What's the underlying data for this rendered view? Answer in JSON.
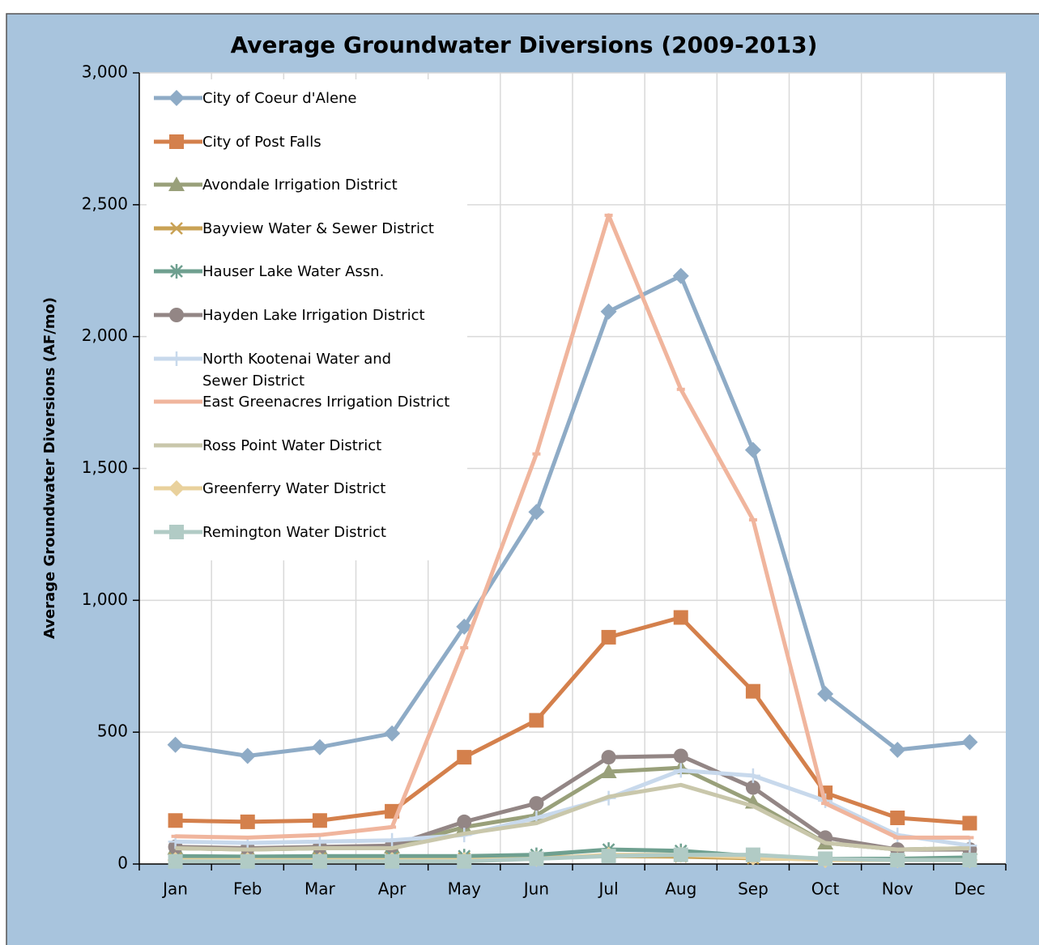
{
  "chart_data": {
    "type": "line",
    "title": "Average Groundwater Diversions (2009-2013)",
    "y_label": "Average Groundwater Diversions (AF/mo)",
    "categories": [
      "Jan",
      "Feb",
      "Mar",
      "Apr",
      "May",
      "Jun",
      "Jul",
      "Aug",
      "Sep",
      "Oct",
      "Nov",
      "Dec"
    ],
    "ylim": [
      0,
      3000
    ],
    "yticks": [
      0,
      500,
      {
        "value": 1000,
        "label": "1,000"
      },
      {
        "value": 1500,
        "label": "1,500"
      },
      {
        "value": 2000,
        "label": "2,000"
      },
      {
        "value": 2500,
        "label": "2,500"
      },
      {
        "value": 3000,
        "label": "3,000"
      }
    ],
    "grid": true,
    "legend": "upper-left",
    "series": [
      {
        "name": "City of Coeur d'Alene",
        "color": "#8eabc6",
        "marker": "diamond",
        "values": [
          452,
          410,
          443,
          495,
          900,
          1335,
          2095,
          2230,
          1570,
          645,
          433,
          462
        ]
      },
      {
        "name": "City of Post Falls",
        "color": "#d4804c",
        "marker": "square",
        "values": [
          165,
          160,
          165,
          200,
          405,
          545,
          860,
          935,
          655,
          270,
          175,
          155
        ]
      },
      {
        "name": "Avondale Irrigation District",
        "color": "#99a07a",
        "marker": "triangle",
        "values": [
          60,
          55,
          60,
          65,
          140,
          185,
          350,
          365,
          235,
          80,
          55,
          60
        ]
      },
      {
        "name": "Bayview Water & Sewer District",
        "color": "#c9a255",
        "marker": "x",
        "values": [
          20,
          18,
          20,
          20,
          22,
          25,
          30,
          28,
          22,
          18,
          18,
          20
        ]
      },
      {
        "name": "Hauser Lake Water Assn.",
        "color": "#6fa090",
        "marker": "star",
        "values": [
          30,
          28,
          30,
          30,
          30,
          35,
          55,
          50,
          30,
          20,
          20,
          25
        ]
      },
      {
        "name": "Hayden Lake Irrigation District",
        "color": "#938685",
        "marker": "circle",
        "values": [
          65,
          60,
          65,
          70,
          160,
          230,
          405,
          410,
          290,
          100,
          55,
          55
        ]
      },
      {
        "name": "North Kootenai Water and Sewer District",
        "color": "#c8d9ec",
        "marker": "plus",
        "values": [
          85,
          80,
          85,
          90,
          110,
          175,
          250,
          355,
          335,
          240,
          110,
          70
        ]
      },
      {
        "name": "East Greenacres Irrigation District",
        "color": "#f0b59d",
        "marker": "dash",
        "values": [
          105,
          100,
          110,
          140,
          820,
          1555,
          2460,
          1800,
          1305,
          230,
          100,
          100
        ]
      },
      {
        "name": "Ross Point Water District",
        "color": "#c9c7ab",
        "marker": "none",
        "values": [
          60,
          55,
          60,
          60,
          115,
          155,
          255,
          300,
          220,
          80,
          55,
          60
        ]
      },
      {
        "name": "Greenferry Water District",
        "color": "#e9d19c",
        "marker": "diamond",
        "values": [
          15,
          15,
          15,
          15,
          15,
          20,
          35,
          35,
          25,
          15,
          15,
          15
        ]
      },
      {
        "name": "Remington  Water District",
        "color": "#b1cbc5",
        "marker": "square",
        "values": [
          10,
          10,
          10,
          10,
          10,
          20,
          30,
          35,
          35,
          20,
          15,
          15
        ]
      }
    ]
  }
}
